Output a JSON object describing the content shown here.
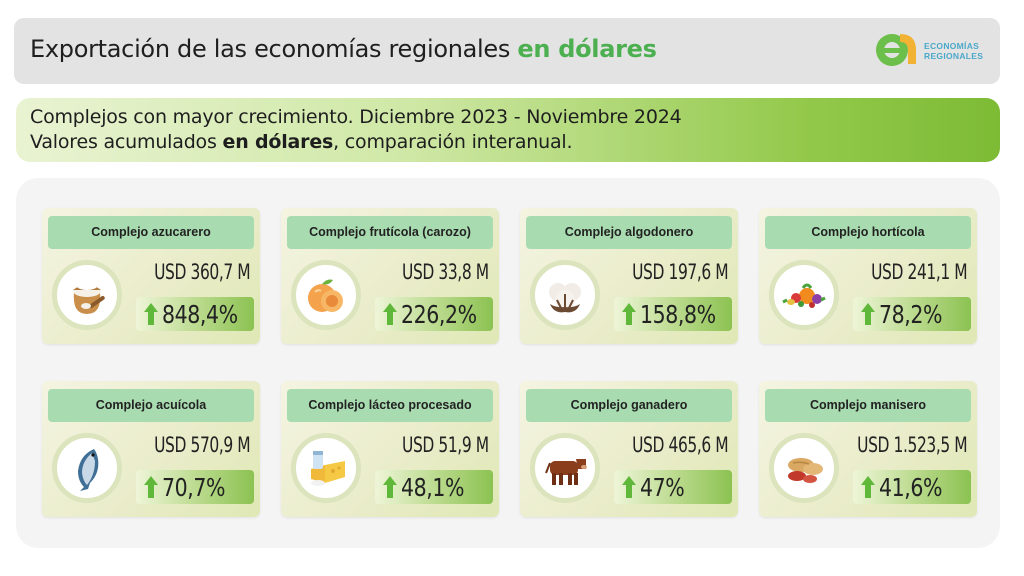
{
  "header": {
    "title_main": "Exportación de las economías regionales ",
    "title_highlight": "en dólares",
    "logo_line1": "ECONOMÍAS",
    "logo_line2": "REGIONALES"
  },
  "subheader": {
    "line1": "Complejos con mayor crecimiento. Diciembre 2023 - Noviembre 2024",
    "line2_pre": "Valores acumulados ",
    "line2_bold": "en dólares",
    "line2_post": ", comparación interanual."
  },
  "colors": {
    "accent_green": "#4caf50",
    "title_bar": "#a8dcb0",
    "arrow": "#5fb83a"
  },
  "cards": [
    {
      "title": "Complejo azucarero",
      "value": "USD 360,7 M",
      "growth": "848,4%",
      "icon": "sugar-sack-icon"
    },
    {
      "title": "Complejo frutícola (carozo)",
      "value": "USD 33,8 M",
      "growth": "226,2%",
      "icon": "peach-icon"
    },
    {
      "title": "Complejo algodonero",
      "value": "USD 197,6 M",
      "growth": "158,8%",
      "icon": "cotton-icon"
    },
    {
      "title": "Complejo hortícola",
      "value": "USD 241,1 M",
      "growth": "78,2%",
      "icon": "vegetables-icon"
    },
    {
      "title": "Complejo acuícola",
      "value": "USD 570,9 M",
      "growth": "70,7%",
      "icon": "fish-icon"
    },
    {
      "title": "Complejo lácteo procesado",
      "value": "USD 51,9 M",
      "growth": "48,1%",
      "icon": "dairy-icon"
    },
    {
      "title": "Complejo ganadero",
      "value": "USD 465,6 M",
      "growth": "47%",
      "icon": "cow-icon"
    },
    {
      "title": "Complejo manisero",
      "value": "USD 1.523,5 M",
      "growth": "41,6%",
      "icon": "peanut-icon"
    }
  ]
}
